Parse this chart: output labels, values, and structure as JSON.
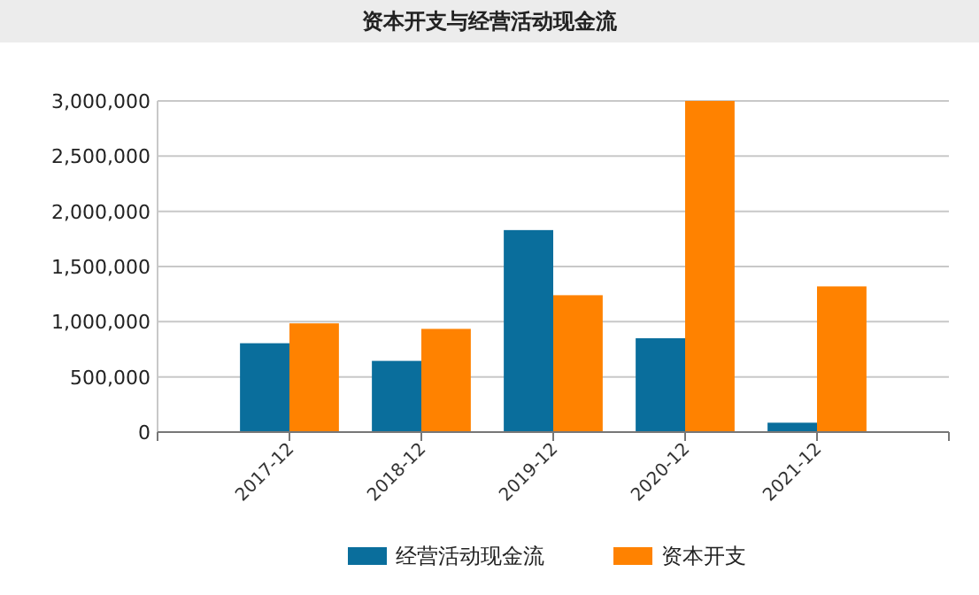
{
  "chart_data": {
    "type": "bar",
    "title": "资本开支与经营活动现金流",
    "categories": [
      "2017-12",
      "2018-12",
      "2019-12",
      "2020-12",
      "2021-12"
    ],
    "series": [
      {
        "name": "经营活动现金流",
        "color": "#0a6e9c",
        "values": [
          805000,
          645000,
          1830000,
          850000,
          85000
        ]
      },
      {
        "name": "资本开支",
        "color": "#ff8200",
        "values": [
          985000,
          935000,
          1240000,
          3000000,
          1320000
        ]
      }
    ],
    "ylim": [
      0,
      3000000
    ],
    "yticks": [
      {
        "value": 0,
        "label": "0"
      },
      {
        "value": 500000,
        "label": "500,000"
      },
      {
        "value": 1000000,
        "label": "1,000,000"
      },
      {
        "value": 1500000,
        "label": "1,500,000"
      },
      {
        "value": 2000000,
        "label": "2,000,000"
      },
      {
        "value": 2500000,
        "label": "2,500,000"
      },
      {
        "value": 3000000,
        "label": "3,000,000"
      }
    ],
    "grid": "y",
    "legend": "bottom"
  }
}
